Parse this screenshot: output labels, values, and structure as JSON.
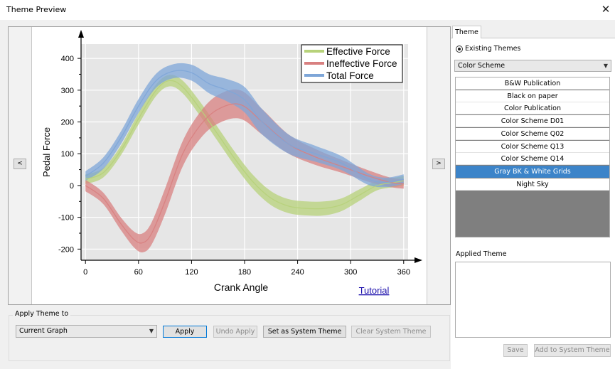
{
  "window": {
    "title": "Theme Preview",
    "close_glyph": "✕"
  },
  "preview": {
    "prev_glyph": "<",
    "next_glyph": ">",
    "tutorial_link": "Tutorial"
  },
  "chart_data": {
    "type": "line",
    "title": "",
    "xlabel": "Crank Angle",
    "ylabel": "Pedal Force",
    "xlim": [
      -5,
      365
    ],
    "ylim": [
      -235,
      445
    ],
    "xticks": [
      0,
      60,
      120,
      180,
      240,
      300,
      360
    ],
    "yticks": [
      -200,
      -100,
      0,
      100,
      200,
      300,
      400
    ],
    "grid": true,
    "legend_position": "top-right",
    "series": [
      {
        "name": "Effective Force",
        "color": "#b7d27a",
        "x": [
          0,
          20,
          40,
          60,
          80,
          95,
          110,
          130,
          150,
          170,
          190,
          210,
          230,
          250,
          270,
          290,
          310,
          330,
          350,
          360
        ],
        "y": [
          20,
          40,
          110,
          210,
          300,
          330,
          310,
          240,
          160,
          80,
          10,
          -40,
          -65,
          -72,
          -72,
          -60,
          -30,
          0,
          10,
          15
        ],
        "band": [
          15,
          15,
          15,
          18,
          18,
          18,
          20,
          22,
          22,
          22,
          22,
          22,
          22,
          22,
          22,
          20,
          18,
          15,
          15,
          15
        ]
      },
      {
        "name": "Ineffective Force",
        "color": "#d88080",
        "x": [
          0,
          20,
          40,
          55,
          65,
          75,
          90,
          110,
          130,
          150,
          175,
          200,
          230,
          260,
          290,
          320,
          345,
          360
        ],
        "y": [
          0,
          -40,
          -120,
          -170,
          -180,
          -150,
          -50,
          100,
          190,
          240,
          255,
          200,
          130,
          90,
          60,
          30,
          10,
          5
        ],
        "band": [
          18,
          18,
          20,
          25,
          30,
          35,
          40,
          40,
          42,
          45,
          45,
          40,
          30,
          25,
          20,
          18,
          15,
          15
        ]
      },
      {
        "name": "Total Force",
        "color": "#7ea6d8",
        "x": [
          0,
          20,
          40,
          60,
          80,
          100,
          120,
          140,
          160,
          180,
          200,
          230,
          260,
          290,
          320,
          340,
          360
        ],
        "y": [
          30,
          70,
          150,
          250,
          330,
          360,
          355,
          320,
          300,
          270,
          200,
          130,
          100,
          70,
          20,
          10,
          20
        ],
        "band": [
          15,
          18,
          20,
          22,
          22,
          22,
          25,
          30,
          35,
          40,
          40,
          30,
          25,
          22,
          18,
          15,
          15
        ]
      }
    ]
  },
  "apply_group": {
    "legend": "Apply Theme to",
    "target_value": "Current Graph",
    "apply_label": "Apply",
    "undo_label": "Undo Apply",
    "system_label": "Set as System Theme",
    "clear_label": "Clear System Theme"
  },
  "themes_panel": {
    "tab_label": "Theme",
    "radio_label": "Existing Themes",
    "category_value": "Color Scheme",
    "items": [
      "B&W Publication",
      "Black on paper",
      "Color Publication",
      "Color Scheme D01",
      "Color Scheme Q02",
      "Color Scheme Q13",
      "Color Scheme Q14",
      "Gray BK & White Grids",
      "Night Sky"
    ],
    "selected_index": 7,
    "applied_label": "Applied Theme",
    "save_label": "Save",
    "add_system_label": "Add to System Theme"
  }
}
